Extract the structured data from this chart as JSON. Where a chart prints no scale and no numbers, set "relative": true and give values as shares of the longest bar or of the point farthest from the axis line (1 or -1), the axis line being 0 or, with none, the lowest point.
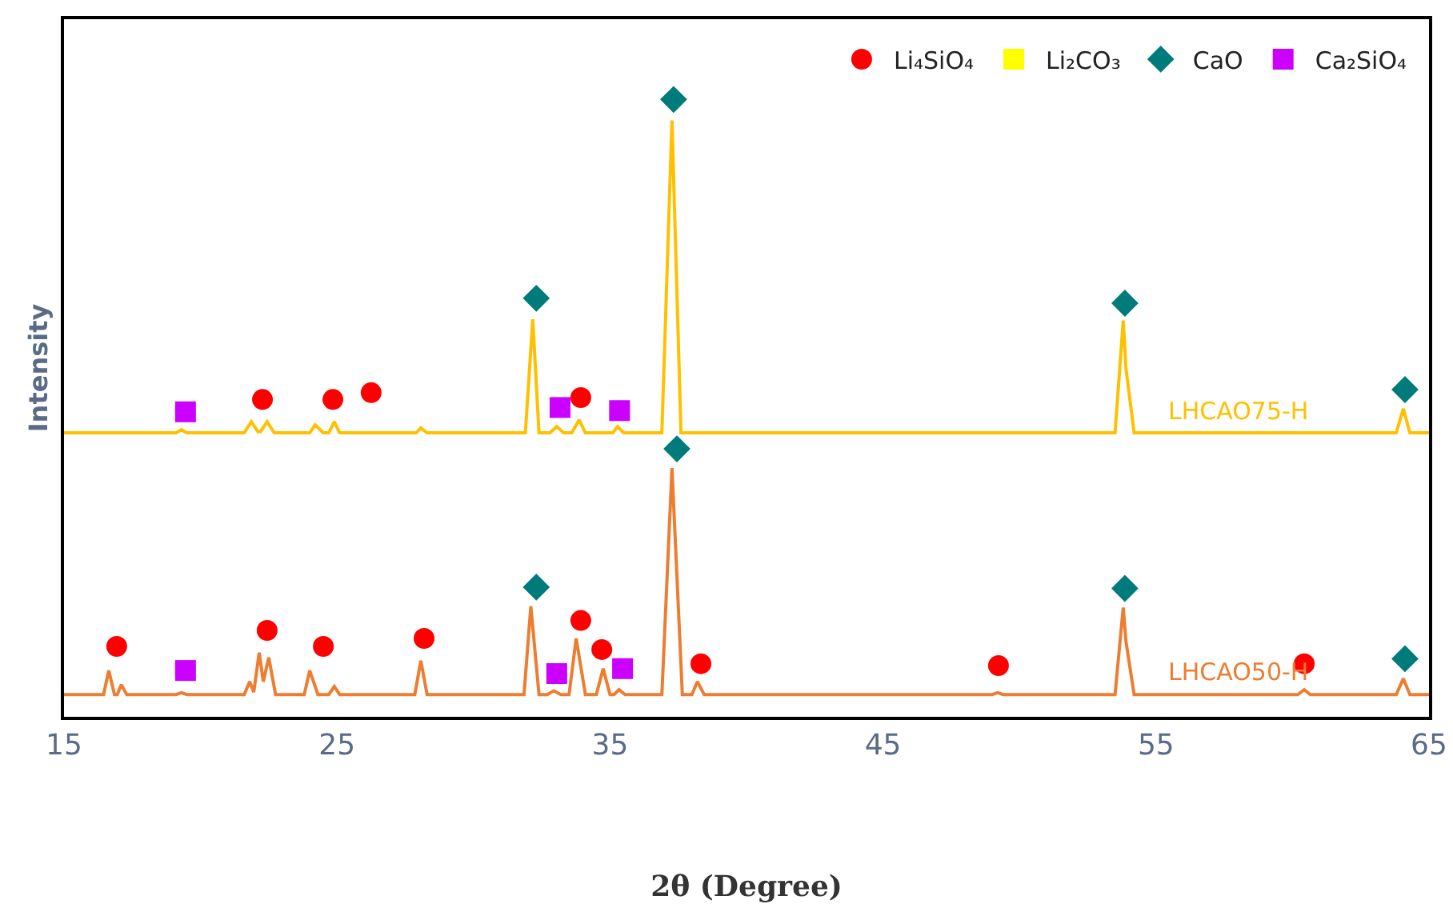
{
  "chart_data": {
    "type": "line",
    "relative": true,
    "xlabel": "2θ (Degree)",
    "ylabel": "Intensity",
    "xlim": [
      15,
      65
    ],
    "xticks": [
      15,
      25,
      35,
      45,
      55,
      65
    ],
    "grid": false,
    "legend": "top right",
    "line_style": "solid",
    "series": [
      {
        "name": "LHCAO75-H",
        "color": "#ffc000",
        "x": [
          15,
          19.1,
          19.3,
          19.5,
          21.6,
          21.86,
          22.1,
          22.2,
          22.44,
          22.7,
          24.0,
          24.2,
          24.5,
          24.7,
          24.9,
          25.1,
          27.9,
          28.07,
          28.3,
          31.9,
          32.17,
          32.4,
          32.8,
          33.05,
          33.3,
          33.6,
          33.87,
          34.1,
          35.1,
          35.28,
          35.5,
          36.9,
          37.27,
          37.6,
          53.5,
          53.8,
          53.9,
          54.2,
          63.8,
          64.06,
          64.3,
          65
        ],
        "values": [
          0.46,
          0.46,
          0.465,
          0.46,
          0.46,
          0.478,
          0.462,
          0.462,
          0.478,
          0.46,
          0.46,
          0.473,
          0.46,
          0.46,
          0.478,
          0.46,
          0.46,
          0.468,
          0.46,
          0.46,
          0.644,
          0.46,
          0.46,
          0.47,
          0.46,
          0.46,
          0.481,
          0.46,
          0.46,
          0.47,
          0.46,
          0.46,
          0.966,
          0.46,
          0.46,
          0.642,
          0.564,
          0.46,
          0.46,
          0.499,
          0.46,
          0.46
        ]
      },
      {
        "name": "LHCAO50-H",
        "color": "#ed7d31",
        "x": [
          15,
          16.45,
          16.64,
          16.85,
          16.95,
          17.1,
          17.3,
          19.1,
          19.3,
          19.5,
          21.6,
          21.8,
          21.95,
          22.15,
          22.3,
          22.5,
          22.75,
          23.8,
          24.0,
          24.3,
          24.7,
          24.9,
          25.1,
          27.85,
          28.07,
          28.3,
          31.85,
          32.1,
          32.4,
          32.7,
          32.94,
          33.2,
          33.5,
          33.76,
          34.1,
          34.5,
          34.75,
          35.0,
          35.15,
          35.33,
          35.55,
          36.9,
          37.27,
          37.65,
          38.0,
          38.2,
          38.45,
          49.0,
          49.2,
          49.4,
          53.5,
          53.8,
          53.9,
          54.2,
          60.2,
          60.43,
          60.65,
          63.8,
          64.06,
          64.3,
          65
        ],
        "values": [
          0.036,
          0.036,
          0.075,
          0.036,
          0.036,
          0.052,
          0.036,
          0.036,
          0.039,
          0.036,
          0.036,
          0.057,
          0.04,
          0.104,
          0.057,
          0.096,
          0.036,
          0.036,
          0.075,
          0.036,
          0.036,
          0.049,
          0.036,
          0.036,
          0.091,
          0.036,
          0.036,
          0.179,
          0.036,
          0.036,
          0.042,
          0.036,
          0.036,
          0.127,
          0.036,
          0.036,
          0.078,
          0.036,
          0.036,
          0.044,
          0.036,
          0.036,
          0.403,
          0.036,
          0.036,
          0.057,
          0.036,
          0.036,
          0.039,
          0.036,
          0.036,
          0.177,
          0.122,
          0.036,
          0.036,
          0.044,
          0.036,
          0.036,
          0.062,
          0.036,
          0.036
        ]
      },
      {
        "name": "Li₄SiO₄",
        "type": "scatter",
        "marker": "circle",
        "color": "#ff0000",
        "x": [
          22.27,
          24.85,
          26.25,
          33.93,
          16.93,
          22.44,
          24.5,
          28.19,
          33.93,
          34.7,
          38.33,
          49.23,
          60.43
        ],
        "values": [
          0.514,
          0.514,
          0.525,
          0.517,
          0.114,
          0.14,
          0.114,
          0.127,
          0.156,
          0.109,
          0.086,
          0.083,
          0.086
        ]
      },
      {
        "name": "Li₂CO₃",
        "type": "scatter",
        "marker": "square",
        "color": "#ffff00"
      },
      {
        "name": "CaO",
        "type": "scatter",
        "marker": "diamond",
        "color": "#007b7b",
        "x": [
          32.3,
          37.33,
          53.86,
          64.12,
          32.3,
          37.45,
          53.86,
          64.12
        ],
        "values": [
          0.678,
          1.0,
          0.67,
          0.53,
          0.21,
          0.434,
          0.208,
          0.094
        ]
      },
      {
        "name": "Ca₂SiO₄",
        "type": "scatter",
        "marker": "square",
        "color": "#cc00ff",
        "x": [
          19.45,
          33.17,
          35.35,
          19.45,
          33.05,
          35.46
        ],
        "values": [
          0.494,
          0.501,
          0.496,
          0.075,
          0.07,
          0.078
        ]
      }
    ]
  }
}
